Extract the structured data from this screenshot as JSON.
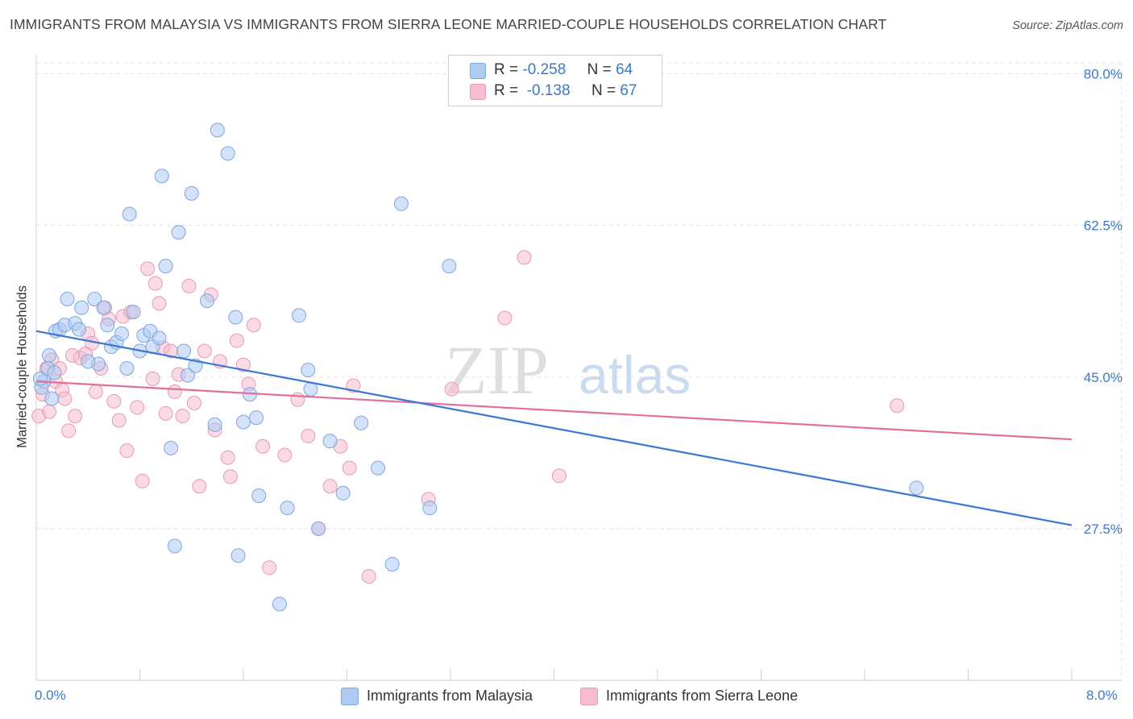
{
  "title": "IMMIGRANTS FROM MALAYSIA VS IMMIGRANTS FROM SIERRA LEONE MARRIED-COUPLE HOUSEHOLDS CORRELATION CHART",
  "source": "Source: ZipAtlas.com",
  "watermark": {
    "part1": "ZIP",
    "part2": "atlas"
  },
  "colors": {
    "blue": "#3a77d0",
    "blue_fill": "#aecbf3",
    "pink": "#e0709a",
    "pink_fill": "#f6bcd0",
    "tick_text": "#3b78c8",
    "grid": "#e3e3e3"
  },
  "legend": {
    "r_label": "R =",
    "n_label": "N =",
    "malaysia": {
      "r": "-0.258",
      "n": "64"
    },
    "sierra_leone": {
      "r": "-0.138",
      "n": "67"
    }
  },
  "bottom_legend": {
    "malaysia": "Immigrants from Malaysia",
    "sierra_leone": "Immigrants from Sierra Leone"
  },
  "x_axis_labels": {
    "left": "0.0%",
    "right": "8.0%"
  },
  "chart_data": {
    "type": "scatter",
    "title": "IMMIGRANTS FROM MALAYSIA VS IMMIGRANTS FROM SIERRA LEONE MARRIED-COUPLE HOUSEHOLDS CORRELATION CHART",
    "xlabel": "",
    "ylabel": "Married-couple Households",
    "xlim": [
      0,
      8
    ],
    "ylim": [
      10,
      82
    ],
    "y_ticks": [
      27.5,
      45.0,
      62.5,
      80.0
    ],
    "y_tick_labels": [
      "27.5%",
      "45.0%",
      "62.5%",
      "80.0%"
    ],
    "x_tick_labels": [
      "0.0%",
      "8.0%"
    ],
    "grid": true,
    "legend_position": "top-center",
    "series": [
      {
        "name": "Immigrants from Malaysia",
        "color": "#3a77d0",
        "trend": {
          "x": [
            0.0,
            8.0
          ],
          "y": [
            50.3,
            27.9
          ]
        },
        "points": [
          [
            0.06,
            44.5
          ],
          [
            0.1,
            47.5
          ],
          [
            0.12,
            42.5
          ],
          [
            0.15,
            50.3
          ],
          [
            0.18,
            50.5
          ],
          [
            0.22,
            51.0
          ],
          [
            0.24,
            54.0
          ],
          [
            0.3,
            51.2
          ],
          [
            0.33,
            50.5
          ],
          [
            0.35,
            53.0
          ],
          [
            0.45,
            54.0
          ],
          [
            0.48,
            46.5
          ],
          [
            0.52,
            53.0
          ],
          [
            0.55,
            51.0
          ],
          [
            0.58,
            48.5
          ],
          [
            0.62,
            49.0
          ],
          [
            0.66,
            50.0
          ],
          [
            0.7,
            46.0
          ],
          [
            0.72,
            63.8
          ],
          [
            0.75,
            52.5
          ],
          [
            0.8,
            48.0
          ],
          [
            0.83,
            49.8
          ],
          [
            0.88,
            50.3
          ],
          [
            0.9,
            48.5
          ],
          [
            0.95,
            49.5
          ],
          [
            0.97,
            68.2
          ],
          [
            1.0,
            57.8
          ],
          [
            1.04,
            36.8
          ],
          [
            1.07,
            25.5
          ],
          [
            1.1,
            61.7
          ],
          [
            1.14,
            48.0
          ],
          [
            1.17,
            45.2
          ],
          [
            1.2,
            66.2
          ],
          [
            1.23,
            46.3
          ],
          [
            1.32,
            53.8
          ],
          [
            1.38,
            39.5
          ],
          [
            1.4,
            73.5
          ],
          [
            1.48,
            70.8
          ],
          [
            1.54,
            51.9
          ],
          [
            1.56,
            24.4
          ],
          [
            1.6,
            39.8
          ],
          [
            1.65,
            43.0
          ],
          [
            1.7,
            40.3
          ],
          [
            1.72,
            31.3
          ],
          [
            1.94,
            29.9
          ],
          [
            2.03,
            52.1
          ],
          [
            2.1,
            45.8
          ],
          [
            2.12,
            43.6
          ],
          [
            2.18,
            27.5
          ],
          [
            2.27,
            37.6
          ],
          [
            2.37,
            31.6
          ],
          [
            2.51,
            39.7
          ],
          [
            2.64,
            34.5
          ],
          [
            2.75,
            23.4
          ],
          [
            2.82,
            65.0
          ],
          [
            3.04,
            29.9
          ],
          [
            3.19,
            57.8
          ],
          [
            1.88,
            18.8
          ],
          [
            6.8,
            32.2
          ],
          [
            0.04,
            43.8
          ],
          [
            0.09,
            46.0
          ],
          [
            0.03,
            44.8
          ],
          [
            0.14,
            45.5
          ],
          [
            0.4,
            46.8
          ]
        ]
      },
      {
        "name": "Immigrants from Sierra Leone",
        "color": "#e0709a",
        "trend": {
          "x": [
            0.0,
            8.0
          ],
          "y": [
            44.5,
            37.8
          ]
        },
        "points": [
          [
            0.02,
            40.5
          ],
          [
            0.05,
            43.0
          ],
          [
            0.08,
            46.0
          ],
          [
            0.1,
            41.0
          ],
          [
            0.12,
            47.0
          ],
          [
            0.15,
            44.5
          ],
          [
            0.18,
            46.0
          ],
          [
            0.2,
            43.5
          ],
          [
            0.22,
            42.5
          ],
          [
            0.25,
            38.8
          ],
          [
            0.28,
            47.5
          ],
          [
            0.3,
            40.5
          ],
          [
            0.34,
            47.2
          ],
          [
            0.38,
            47.7
          ],
          [
            0.4,
            50.0
          ],
          [
            0.43,
            48.9
          ],
          [
            0.46,
            43.3
          ],
          [
            0.5,
            46.0
          ],
          [
            0.53,
            53.0
          ],
          [
            0.56,
            51.7
          ],
          [
            0.6,
            42.2
          ],
          [
            0.64,
            40.0
          ],
          [
            0.67,
            52.0
          ],
          [
            0.7,
            36.5
          ],
          [
            0.73,
            52.5
          ],
          [
            0.78,
            41.5
          ],
          [
            0.82,
            33.0
          ],
          [
            0.86,
            57.5
          ],
          [
            0.9,
            44.8
          ],
          [
            0.92,
            55.8
          ],
          [
            0.95,
            53.5
          ],
          [
            0.98,
            48.4
          ],
          [
            1.0,
            40.8
          ],
          [
            1.04,
            48.0
          ],
          [
            1.07,
            43.3
          ],
          [
            1.1,
            45.3
          ],
          [
            1.13,
            40.5
          ],
          [
            1.18,
            55.5
          ],
          [
            1.22,
            42.0
          ],
          [
            1.26,
            32.4
          ],
          [
            1.3,
            48.0
          ],
          [
            1.35,
            54.5
          ],
          [
            1.38,
            38.9
          ],
          [
            1.42,
            46.8
          ],
          [
            1.48,
            35.7
          ],
          [
            1.5,
            33.5
          ],
          [
            1.55,
            49.2
          ],
          [
            1.6,
            46.4
          ],
          [
            1.64,
            44.2
          ],
          [
            1.68,
            51.0
          ],
          [
            1.75,
            37.0
          ],
          [
            1.8,
            23.0
          ],
          [
            1.92,
            36.0
          ],
          [
            2.02,
            42.4
          ],
          [
            2.1,
            38.2
          ],
          [
            2.18,
            27.5
          ],
          [
            2.27,
            32.4
          ],
          [
            2.35,
            37.0
          ],
          [
            2.42,
            34.5
          ],
          [
            2.45,
            44.0
          ],
          [
            2.57,
            22.0
          ],
          [
            3.03,
            30.9
          ],
          [
            3.21,
            43.6
          ],
          [
            3.62,
            51.8
          ],
          [
            3.77,
            58.8
          ],
          [
            4.04,
            33.6
          ],
          [
            6.65,
            41.7
          ]
        ]
      }
    ]
  }
}
